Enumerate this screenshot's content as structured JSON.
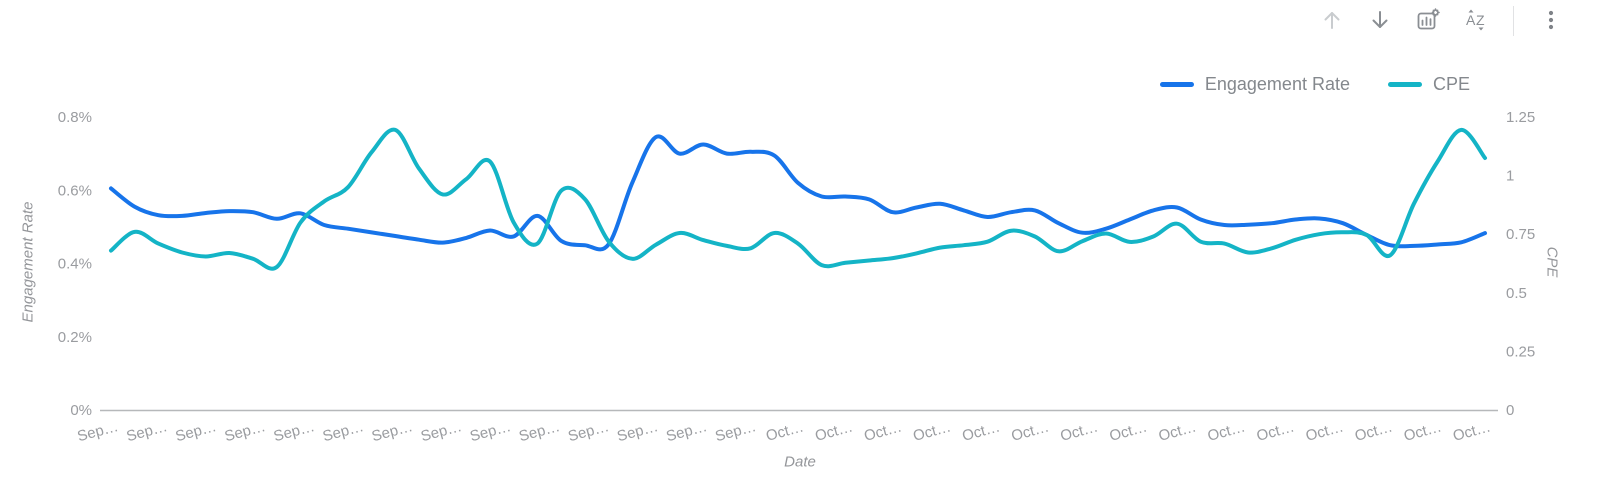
{
  "toolbar": {
    "icons": [
      {
        "icon": "arrow-up",
        "disabled": true
      },
      {
        "icon": "arrow-down",
        "disabled": false
      },
      {
        "icon": "chart-settings",
        "disabled": false
      },
      {
        "icon": "sort-az",
        "disabled": false
      },
      {
        "icon": "kebab-menu",
        "disabled": false
      }
    ]
  },
  "colors": {
    "engagement_rate": "#1774ea",
    "cpe": "#14b4c6",
    "axis_line": "#b6b8ba",
    "tick_text": "#9a9ca0",
    "axis_title_text": "#94969a",
    "legend_text": "#84888d",
    "icon": "#8a8e93",
    "icon_disabled": "#c9cccf"
  },
  "chart_data": {
    "type": "line",
    "title": "",
    "xlabel": "Date",
    "ylabel_left": "Engagement Rate",
    "ylabel_right": "CPE",
    "legend": [
      "Engagement Rate",
      "CPE"
    ],
    "legend_position": "top-right",
    "grid": false,
    "left_axis": {
      "min": 0,
      "max": 0.8,
      "ticks": [
        "0%",
        "0.2%",
        "0.4%",
        "0.6%",
        "0.8%"
      ]
    },
    "right_axis": {
      "min": 0,
      "max": 1.25,
      "ticks": [
        "0",
        "0.25",
        "0.5",
        "0.75",
        "1",
        "1.25"
      ]
    },
    "x_tick_labels": [
      "Sep…",
      "Sep…",
      "Sep…",
      "Sep…",
      "Sep…",
      "Sep…",
      "Sep…",
      "Sep…",
      "Sep…",
      "Sep…",
      "Sep…",
      "Sep…",
      "Sep…",
      "Sep…",
      "Oct…",
      "Oct…",
      "Oct…",
      "Oct…",
      "Oct…",
      "Oct…",
      "Oct…",
      "Oct…",
      "Oct…",
      "Oct…",
      "Oct…",
      "Oct…",
      "Oct…",
      "Oct…",
      "Oct…"
    ],
    "series": [
      {
        "name": "Engagement Rate",
        "axis": "left",
        "unit": "%",
        "color": "#1774ea",
        "values": [
          0.605,
          0.555,
          0.532,
          0.53,
          0.538,
          0.543,
          0.54,
          0.522,
          0.537,
          0.505,
          0.495,
          0.485,
          0.475,
          0.465,
          0.457,
          0.47,
          0.49,
          0.474,
          0.53,
          0.462,
          0.45,
          0.452,
          0.62,
          0.745,
          0.7,
          0.725,
          0.7,
          0.705,
          0.695,
          0.62,
          0.583,
          0.583,
          0.575,
          0.54,
          0.553,
          0.563,
          0.545,
          0.527,
          0.54,
          0.545,
          0.51,
          0.484,
          0.495,
          0.52,
          0.545,
          0.553,
          0.52,
          0.505,
          0.506,
          0.51,
          0.52,
          0.523,
          0.51,
          0.478,
          0.45,
          0.448,
          0.452,
          0.458,
          0.483
        ]
      },
      {
        "name": "CPE",
        "axis": "right",
        "unit": "",
        "color": "#14b4c6",
        "values": [
          0.68,
          0.76,
          0.71,
          0.672,
          0.655,
          0.67,
          0.645,
          0.61,
          0.8,
          0.89,
          0.95,
          1.1,
          1.195,
          1.03,
          0.92,
          0.985,
          1.06,
          0.8,
          0.71,
          0.935,
          0.9,
          0.72,
          0.645,
          0.705,
          0.755,
          0.725,
          0.7,
          0.69,
          0.755,
          0.71,
          0.618,
          0.628,
          0.638,
          0.648,
          0.668,
          0.693,
          0.703,
          0.718,
          0.765,
          0.74,
          0.677,
          0.72,
          0.753,
          0.717,
          0.74,
          0.795,
          0.718,
          0.71,
          0.672,
          0.69,
          0.726,
          0.75,
          0.758,
          0.747,
          0.66,
          0.88,
          1.06,
          1.195,
          1.075
        ]
      }
    ]
  }
}
